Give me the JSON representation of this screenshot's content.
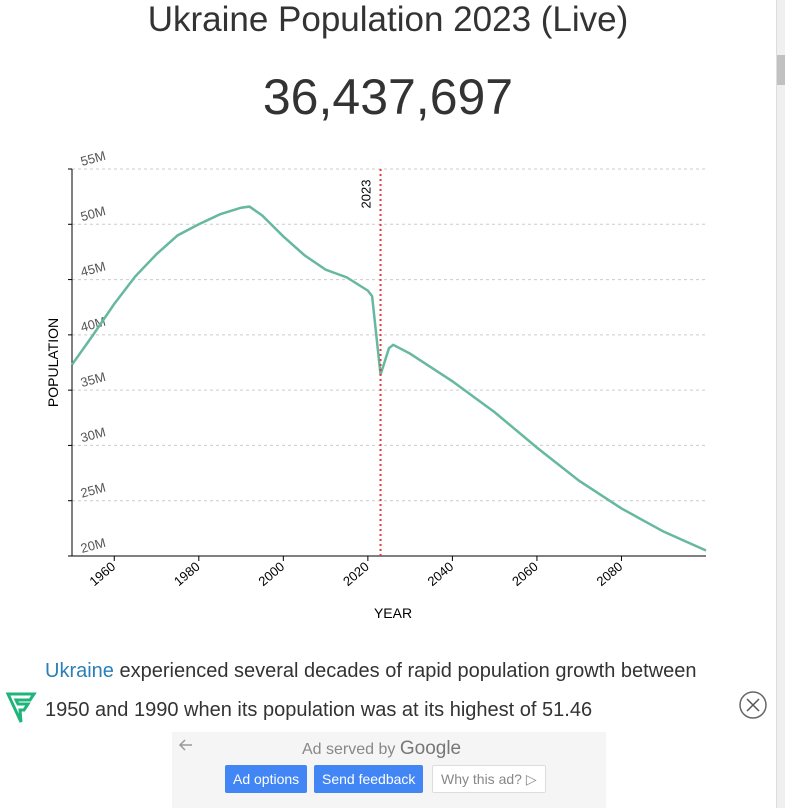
{
  "header": {
    "title": "Ukraine Population 2023 (Live)",
    "counter": "36,437,697"
  },
  "chart_data": {
    "type": "line",
    "x_label": "YEAR",
    "y_label": "POPULATION",
    "x": [
      1950,
      1955,
      1960,
      1965,
      1970,
      1975,
      1980,
      1985,
      1990,
      1992,
      1995,
      2000,
      2005,
      2010,
      2015,
      2020,
      2021,
      2023,
      2025,
      2026,
      2030,
      2040,
      2050,
      2060,
      2070,
      2080,
      2090,
      2100
    ],
    "values": [
      37300000,
      40000000,
      42800000,
      45300000,
      47300000,
      49000000,
      50000000,
      50900000,
      51500000,
      51600000,
      50800000,
      48900000,
      47200000,
      45900000,
      45200000,
      44000000,
      43500000,
      36400000,
      38800000,
      39100000,
      38300000,
      35800000,
      33000000,
      29800000,
      26800000,
      24300000,
      22200000,
      20500000
    ],
    "color": "#66b8a0",
    "xlim": [
      1950,
      2100
    ],
    "xticks": [
      1960,
      1980,
      2000,
      2020,
      2040,
      2060,
      2080
    ],
    "ylim": [
      20000000,
      55000000
    ],
    "yticks": [
      {
        "value": 20000000,
        "label": "20M"
      },
      {
        "value": 25000000,
        "label": "25M"
      },
      {
        "value": 30000000,
        "label": "30M"
      },
      {
        "value": 35000000,
        "label": "35M"
      },
      {
        "value": 40000000,
        "label": "40M"
      },
      {
        "value": 45000000,
        "label": "45M"
      },
      {
        "value": 50000000,
        "label": "50M"
      },
      {
        "value": 55000000,
        "label": "55M"
      }
    ],
    "grid": true,
    "marker": {
      "x": 2023,
      "label": "2023",
      "color": "#e53935"
    }
  },
  "text": {
    "link": "Ukraine",
    "body": " experienced several decades of rapid population growth between 1950 and 1990 when its population was at its highest of 51.46"
  },
  "ad": {
    "served_by": "Ad served by",
    "brand": "Google",
    "buttons": [
      "Ad options",
      "Send feedback",
      "Why this ad?"
    ]
  }
}
